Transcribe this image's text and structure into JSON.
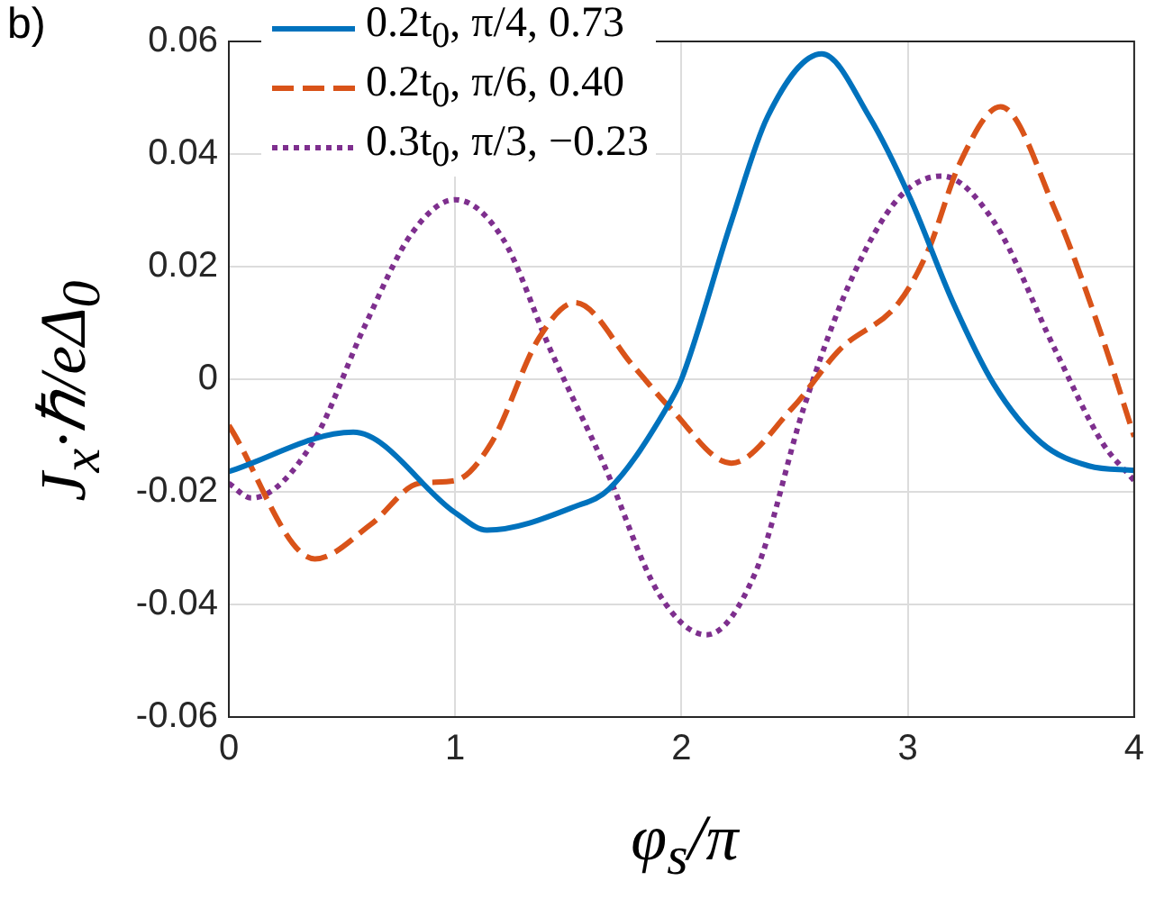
{
  "chart_data": {
    "type": "line",
    "title": "b)",
    "xlabel": "φ$_{s}$/π",
    "ylabel": "J$_{x}$·ℏ/eΔ$_{0}$",
    "xlim": [
      0,
      4
    ],
    "xticks": [
      0,
      1,
      2,
      3,
      4
    ],
    "ylim": [
      -0.06,
      0.06
    ],
    "yticks": [
      -0.06,
      -0.04,
      -0.02,
      0,
      0.02,
      0.04,
      0.06
    ],
    "grid": true,
    "legend": "top left",
    "marker": "none",
    "series": [
      {
        "name": "0.2t$_{0}$, π/4, 0.73",
        "color": "#0072bd",
        "line_style": "solid",
        "x": [
          0,
          0.55,
          1.0,
          1.14,
          1.53,
          1.68,
          1.95,
          2.0,
          2.22,
          2.38,
          2.62,
          2.83,
          3.01,
          3.2,
          3.38,
          3.59,
          3.8,
          4
        ],
        "values": [
          -0.0164,
          -0.0094,
          -0.0237,
          -0.0268,
          -0.0226,
          -0.0195,
          -0.004,
          0.0,
          0.028,
          0.0466,
          0.0578,
          0.0466,
          0.0322,
          0.0136,
          -0.0009,
          -0.0113,
          -0.0154,
          -0.0162
        ]
      },
      {
        "name": "0.2t$_{0}$, π/6, 0.40",
        "color": "#d95319",
        "line_style": "dashed",
        "x": [
          0,
          0.38,
          0.63,
          0.84,
          1.0,
          1.16,
          1.37,
          1.53,
          1.79,
          1.95,
          2.22,
          2.49,
          2.7,
          2.96,
          3.09,
          3.23,
          3.41,
          3.65,
          3.86,
          4
        ],
        "values": [
          -0.0082,
          -0.0319,
          -0.0257,
          -0.0185,
          -0.018,
          -0.0113,
          0.0073,
          0.0136,
          0.0022,
          -0.0051,
          -0.0149,
          -0.0051,
          0.0053,
          0.0136,
          0.0229,
          0.0384,
          0.0484,
          0.0301,
          0.0073,
          -0.0102
        ]
      },
      {
        "name": "0.3t$_{0}$, π/3, −0.23",
        "color": "#7e2f8e",
        "line_style": "dotted",
        "x": [
          0,
          0.1,
          0.37,
          0.6,
          0.81,
          1.0,
          1.21,
          1.42,
          1.66,
          1.9,
          2.11,
          2.33,
          2.54,
          2.75,
          2.96,
          3.15,
          3.38,
          3.65,
          3.86,
          4
        ],
        "values": [
          -0.0185,
          -0.0211,
          -0.0113,
          0.0094,
          0.026,
          0.0319,
          0.025,
          0.0053,
          -0.0154,
          -0.0381,
          -0.0454,
          -0.034,
          -0.0051,
          0.0177,
          0.0322,
          0.0361,
          0.028,
          0.0053,
          -0.0113,
          -0.018
        ]
      }
    ]
  }
}
